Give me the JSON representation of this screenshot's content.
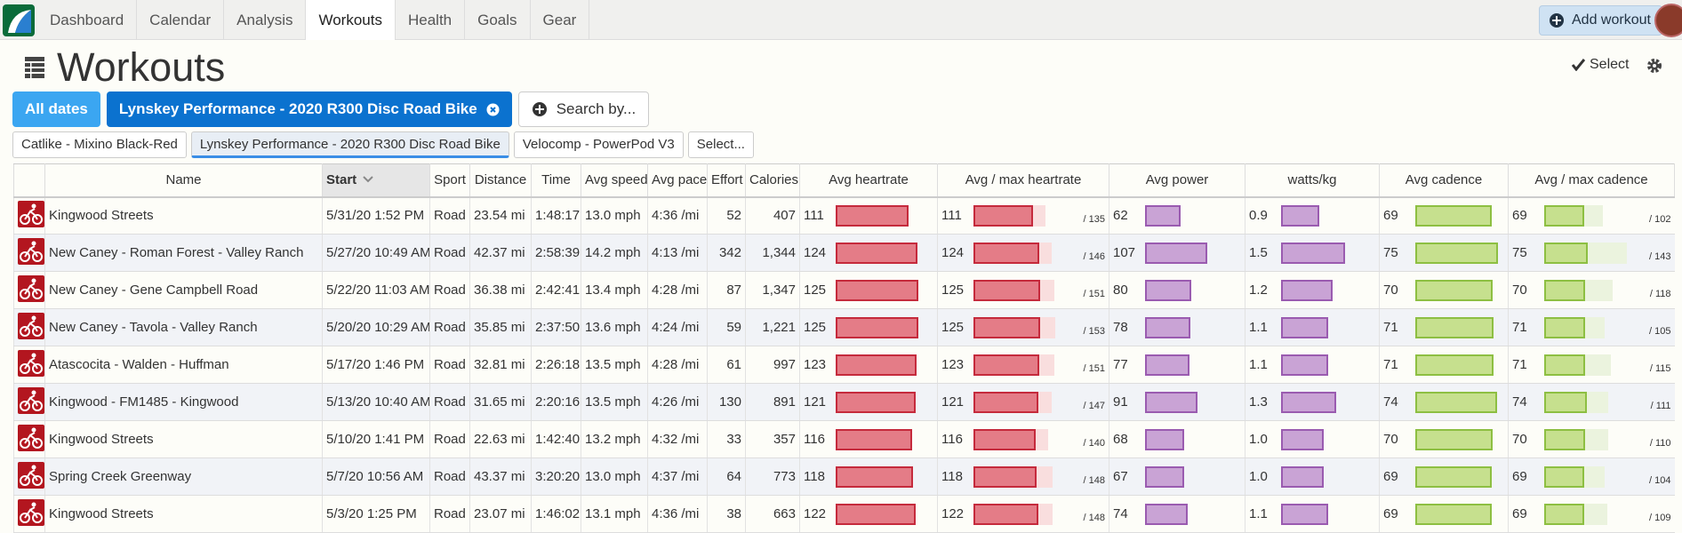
{
  "nav": {
    "tabs": [
      "Dashboard",
      "Calendar",
      "Analysis",
      "Workouts",
      "Health",
      "Goals",
      "Gear"
    ],
    "active_tab": 3,
    "add_workout": "Add workout"
  },
  "page": {
    "title": "Workouts",
    "select": "Select"
  },
  "filters": {
    "dates": "All dates",
    "bike": "Lynskey Performance - 2020 R300 Disc Road Bike",
    "search": "Search by..."
  },
  "bike_tabs": {
    "items": [
      "Catlike - Mixino Black-Red",
      "Lynskey Performance - 2020 R300 Disc Road Bike",
      "Velocomp - PowerPod V3",
      "Select..."
    ],
    "active": 1
  },
  "table": {
    "headers": [
      "Name",
      "Start",
      "Sport",
      "Distance",
      "Time",
      "Avg speed",
      "Avg pace",
      "Effort",
      "Calories",
      "Avg heartrate",
      "Avg / max heartrate",
      "Avg power",
      "watts/kg",
      "Avg cadence",
      "Avg / max cadence"
    ],
    "sorted": 1,
    "rows": [
      [
        "Kingwood Streets",
        "5/31/20 1:52 PM",
        "Road",
        "23.54 mi",
        "1:48:17",
        "13.0 mph",
        "4:36 /mi",
        "52",
        "407",
        "111",
        "/ 135",
        "62",
        "0.9",
        "69",
        "/ 102"
      ],
      [
        "New Caney - Roman Forest - Valley Ranch",
        "5/27/20 10:49 AM",
        "Road",
        "42.37 mi",
        "2:58:39",
        "14.2 mph",
        "4:13 /mi",
        "342",
        "1,344",
        "124",
        "/ 146",
        "107",
        "1.5",
        "75",
        "/ 143"
      ],
      [
        "New Caney - Gene Campbell Road",
        "5/22/20 11:03 AM",
        "Road",
        "36.38 mi",
        "2:42:41",
        "13.4 mph",
        "4:28 /mi",
        "87",
        "1,347",
        "125",
        "/ 151",
        "80",
        "1.2",
        "70",
        "/ 118"
      ],
      [
        "New Caney - Tavola - Valley Ranch",
        "5/20/20 10:29 AM",
        "Road",
        "35.85 mi",
        "2:37:50",
        "13.6 mph",
        "4:24 /mi",
        "59",
        "1,221",
        "125",
        "/ 153",
        "78",
        "1.1",
        "71",
        "/ 105"
      ],
      [
        "Atascocita - Walden - Huffman",
        "5/17/20 1:46 PM",
        "Road",
        "32.81 mi",
        "2:26:18",
        "13.5 mph",
        "4:28 /mi",
        "61",
        "997",
        "123",
        "/ 151",
        "77",
        "1.1",
        "71",
        "/ 115"
      ],
      [
        "Kingwood - FM1485 - Kingwood",
        "5/13/20 10:40 AM",
        "Road",
        "31.65 mi",
        "2:20:16",
        "13.5 mph",
        "4:26 /mi",
        "130",
        "891",
        "121",
        "/ 147",
        "91",
        "1.3",
        "74",
        "/ 111"
      ],
      [
        "Kingwood Streets",
        "5/10/20 1:41 PM",
        "Road",
        "22.63 mi",
        "1:42:40",
        "13.2 mph",
        "4:32 /mi",
        "33",
        "357",
        "116",
        "/ 140",
        "68",
        "1.0",
        "70",
        "/ 110"
      ],
      [
        "Spring Creek Greenway",
        "5/7/20 10:56 AM",
        "Road",
        "43.37 mi",
        "3:20:20",
        "13.0 mph",
        "4:37 /mi",
        "64",
        "773",
        "118",
        "/ 148",
        "67",
        "1.0",
        "69",
        "/ 104"
      ],
      [
        "Kingwood Streets",
        "5/3/20 1:25 PM",
        "Road",
        "23.07 mi",
        "1:46:02",
        "13.1 mph",
        "4:36 /mi",
        "38",
        "663",
        "122",
        "/ 148",
        "74",
        "1.1",
        "69",
        "/ 109"
      ]
    ]
  }
}
